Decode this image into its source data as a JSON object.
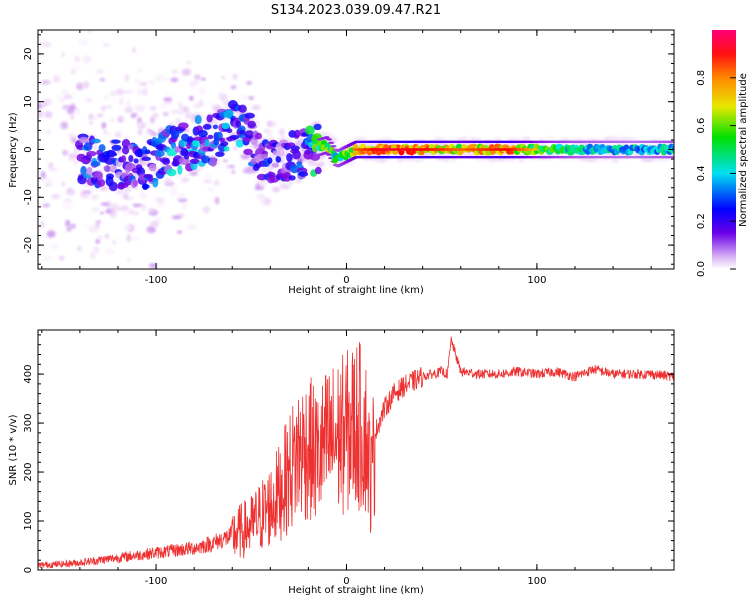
{
  "figure": {
    "title": "S134.2023.039.09.47.R21"
  },
  "chart_data": [
    {
      "type": "heatmap",
      "xlabel": "Height of straight line (km)",
      "ylabel": "Frequency (Hz)",
      "xlim": [
        -162,
        172
      ],
      "ylim": [
        -25,
        25
      ],
      "x_ticks": [
        -100,
        0,
        100
      ],
      "y_ticks": [
        -20,
        -10,
        0,
        10,
        20
      ],
      "colorbar": {
        "label": "Normalized spectral amplitude",
        "range": [
          0.0,
          1.0
        ],
        "ticks": [
          "0.0",
          "0.2",
          "0.4",
          "0.6",
          "0.8"
        ],
        "colormap": [
          "#ffffff",
          "#e8c8f5",
          "#7a00e0",
          "#0000ff",
          "#00e8e8",
          "#00e000",
          "#e8e800",
          "#ff8000",
          "#ff0000",
          "#ff0066"
        ]
      },
      "ridge": [
        {
          "x": -135,
          "y": -2,
          "amp": 0.35
        },
        {
          "x": -120,
          "y": -3,
          "amp": 0.3
        },
        {
          "x": -105,
          "y": -3,
          "amp": 0.35
        },
        {
          "x": -95,
          "y": -1,
          "amp": 0.4
        },
        {
          "x": -85,
          "y": 1,
          "amp": 0.4
        },
        {
          "x": -70,
          "y": 2,
          "amp": 0.35
        },
        {
          "x": -62,
          "y": 5,
          "amp": 0.4
        },
        {
          "x": -50,
          "y": 3,
          "amp": 0.35
        },
        {
          "x": -45,
          "y": -2,
          "amp": 0.3
        },
        {
          "x": -35,
          "y": -3,
          "amp": 0.3
        },
        {
          "x": -25,
          "y": -1,
          "amp": 0.35
        },
        {
          "x": -18,
          "y": 0,
          "amp": 0.5
        },
        {
          "x": -10,
          "y": 1,
          "amp": 0.6
        },
        {
          "x": -5,
          "y": -2,
          "amp": 0.5
        },
        {
          "x": 5,
          "y": 0,
          "amp": 0.7
        },
        {
          "x": 20,
          "y": 0,
          "amp": 0.85
        },
        {
          "x": 40,
          "y": 0,
          "amp": 0.8
        },
        {
          "x": 60,
          "y": 0,
          "amp": 0.7
        },
        {
          "x": 85,
          "y": 0,
          "amp": 0.8
        },
        {
          "x": 100,
          "y": 0,
          "amp": 0.6
        },
        {
          "x": 120,
          "y": 0,
          "amp": 0.5
        },
        {
          "x": 150,
          "y": 0,
          "amp": 0.45
        },
        {
          "x": 170,
          "y": 0,
          "amp": 0.5
        }
      ]
    },
    {
      "type": "line",
      "xlabel": "Height of straight line (km)",
      "ylabel": "SNR (10 * v/v)",
      "xlim": [
        -162,
        172
      ],
      "ylim": [
        0,
        490
      ],
      "x_ticks": [
        -100,
        0,
        100
      ],
      "y_ticks": [
        0,
        100,
        200,
        300,
        400
      ],
      "color": "#ee3030",
      "series": [
        {
          "x": [
            -162,
            -150,
            -140,
            -130,
            -120,
            -110,
            -100,
            -90,
            -80,
            -70,
            -60,
            -50,
            -40,
            -35,
            -30,
            -25,
            -20,
            -15,
            -10,
            -5,
            0,
            5,
            10,
            13,
            15,
            20,
            25,
            30,
            35,
            40,
            45,
            50,
            53,
            55,
            60,
            70,
            80,
            90,
            100,
            110,
            120,
            130,
            140,
            150,
            160,
            172
          ],
          "y": [
            10,
            12,
            15,
            20,
            25,
            30,
            35,
            40,
            45,
            55,
            70,
            90,
            130,
            160,
            200,
            240,
            250,
            230,
            260,
            270,
            280,
            300,
            280,
            180,
            280,
            330,
            360,
            375,
            385,
            395,
            400,
            405,
            400,
            470,
            405,
            400,
            400,
            405,
            400,
            405,
            395,
            410,
            400,
            400,
            400,
            395
          ]
        }
      ]
    }
  ]
}
